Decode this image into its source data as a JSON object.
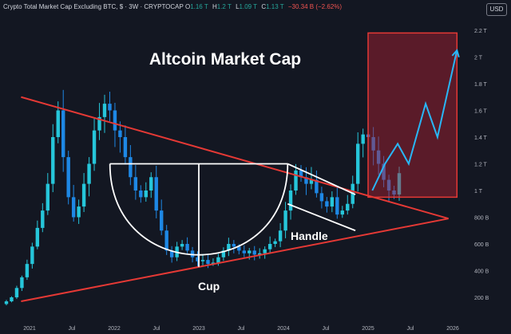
{
  "header": {
    "symbol": "Crypto Total Market Cap Excluding BTC, $ · 3W · CRYPTOCAP",
    "o_label": "O",
    "o_value": "1.16 T",
    "h_label": "H",
    "h_value": "1.2 T",
    "l_label": "L",
    "l_value": "1.09 T",
    "c_label": "C",
    "c_value": "1.13 T",
    "change": "−30.34 B (−2.62%)"
  },
  "currency_button": "USD",
  "chart_data": {
    "type": "candlestick",
    "title": "Altcoin Market Cap",
    "x_ticks": [
      "2021",
      "Jul",
      "2022",
      "Jul",
      "2023",
      "Jul",
      "2024",
      "Jul",
      "2025",
      "Jul",
      "2026"
    ],
    "y_ticks": [
      "2.2 T",
      "2 T",
      "1.8 T",
      "1.6 T",
      "1.4 T",
      "1.2 T",
      "1 T",
      "800 B",
      "600 B",
      "400 B",
      "200 B"
    ],
    "y_tick_values": [
      2.2,
      2.0,
      1.8,
      1.6,
      1.4,
      1.2,
      1.0,
      0.8,
      0.6,
      0.4,
      0.2
    ],
    "y_unit": "T",
    "x_range": [
      "2020-12",
      "2026-02"
    ],
    "y_range": [
      0.05,
      2.3
    ],
    "closes_approx": [
      0.17,
      0.2,
      0.27,
      0.35,
      0.45,
      0.58,
      0.72,
      0.85,
      1.05,
      1.4,
      1.6,
      1.25,
      0.95,
      0.8,
      0.88,
      1.05,
      1.2,
      1.45,
      1.55,
      1.65,
      1.6,
      1.45,
      1.4,
      1.25,
      1.1,
      1.0,
      0.95,
      1.0,
      1.1,
      0.85,
      0.7,
      0.55,
      0.5,
      0.58,
      0.6,
      0.55,
      0.5,
      0.47,
      0.48,
      0.45,
      0.46,
      0.5,
      0.55,
      0.6,
      0.58,
      0.55,
      0.53,
      0.55,
      0.52,
      0.53,
      0.56,
      0.6,
      0.62,
      0.7,
      0.85,
      1.0,
      1.15,
      1.1,
      1.05,
      1.08,
      0.98,
      0.92,
      0.88,
      0.95,
      0.82,
      0.85,
      0.9,
      1.05,
      1.35,
      1.42,
      1.4,
      1.3,
      1.2,
      1.08,
      1.0,
      0.97,
      1.13
    ],
    "annotations": {
      "cup_label": "Cup",
      "handle_label": "Handle",
      "projection": [
        [
          2025.05,
          1.0
        ],
        [
          2025.2,
          1.2
        ],
        [
          2025.35,
          1.35
        ],
        [
          2025.48,
          1.2
        ],
        [
          2025.68,
          1.65
        ],
        [
          2025.82,
          1.4
        ],
        [
          2026.05,
          2.05
        ]
      ],
      "target_zone": {
        "x_range": [
          2025.0,
          2026.05
        ],
        "y_range": [
          0.95,
          2.18
        ]
      },
      "triangle_upper_line": [
        [
          2020.9,
          1.7
        ],
        [
          2025.95,
          0.79
        ]
      ],
      "triangle_lower_line": [
        [
          2020.9,
          0.17
        ],
        [
          2025.95,
          0.79
        ]
      ],
      "cup_rim_level": 1.2,
      "cup_x_range": [
        2021.95,
        2024.05
      ],
      "handle_lines": [
        [
          [
            2024.05,
            1.2
          ],
          [
            2024.85,
            0.97
          ]
        ],
        [
          [
            2024.05,
            0.9
          ],
          [
            2024.85,
            0.7
          ]
        ]
      ]
    },
    "grid": false,
    "legend": "none"
  }
}
